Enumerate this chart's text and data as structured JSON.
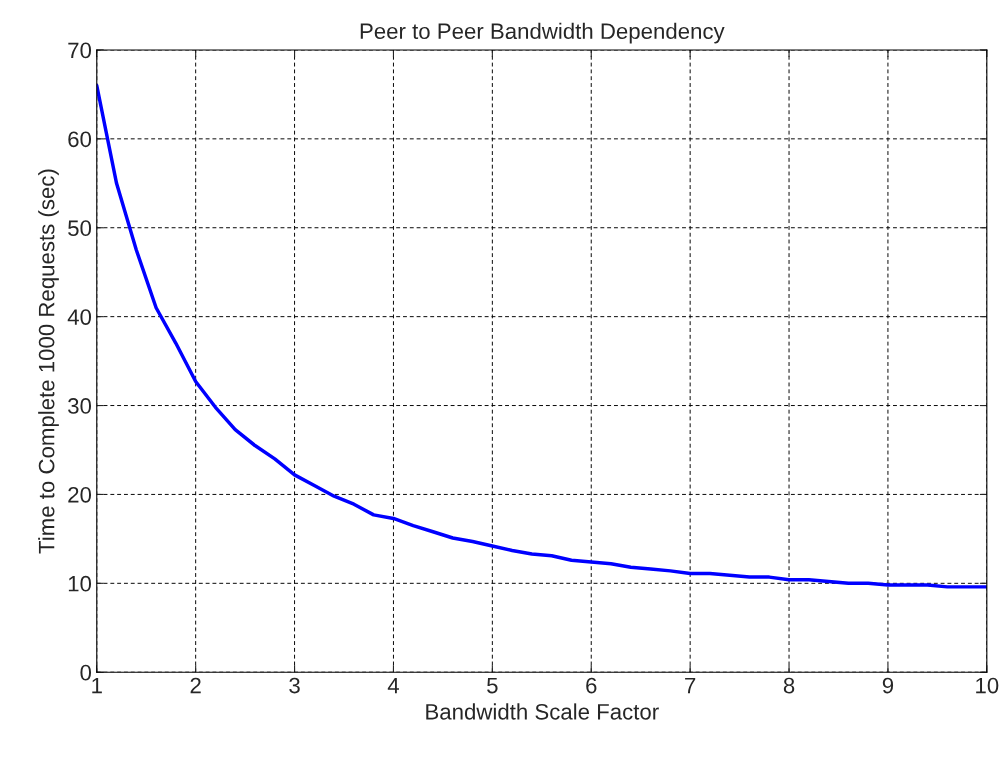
{
  "chart_data": {
    "type": "line",
    "title": "Peer to Peer Bandwidth Dependency",
    "xlabel": "Bandwidth Scale Factor",
    "ylabel": "Time to Complete 1000 Requests (sec)",
    "x": [
      1,
      1.2,
      1.4,
      1.6,
      1.8,
      2,
      2.2,
      2.4,
      2.6,
      2.8,
      3,
      3.2,
      3.4,
      3.6,
      3.8,
      4,
      4.2,
      4.4,
      4.6,
      4.8,
      5,
      5.2,
      5.4,
      5.6,
      5.8,
      6,
      6.2,
      6.4,
      6.6,
      6.8,
      7,
      7.2,
      7.4,
      7.6,
      7.8,
      8,
      8.2,
      8.4,
      8.6,
      8.8,
      9,
      9.2,
      9.4,
      9.6,
      9.8,
      10
    ],
    "series": [
      {
        "color": "#0000ff",
        "values": [
          66,
          55,
          47.5,
          41,
          37,
          32.7,
          29.8,
          27.3,
          25.5,
          24,
          22.2,
          21,
          19.8,
          18.9,
          17.7,
          17.3,
          16.5,
          15.8,
          15.1,
          14.7,
          14.2,
          13.7,
          13.3,
          13.1,
          12.6,
          12.4,
          12.2,
          11.8,
          11.6,
          11.4,
          11.1,
          11.1,
          10.9,
          10.7,
          10.7,
          10.4,
          10.4,
          10.2,
          10,
          10,
          9.8,
          9.8,
          9.8,
          9.6,
          9.6,
          9.6
        ]
      }
    ],
    "xlim": [
      1,
      10
    ],
    "xticks": [
      1,
      2,
      3,
      4,
      5,
      6,
      7,
      8,
      9,
      10
    ],
    "ylim": [
      0,
      70
    ],
    "yticks": [
      0,
      10,
      20,
      30,
      40,
      50,
      60,
      70
    ],
    "grid": true,
    "line_style": "solid",
    "marker": "none"
  }
}
